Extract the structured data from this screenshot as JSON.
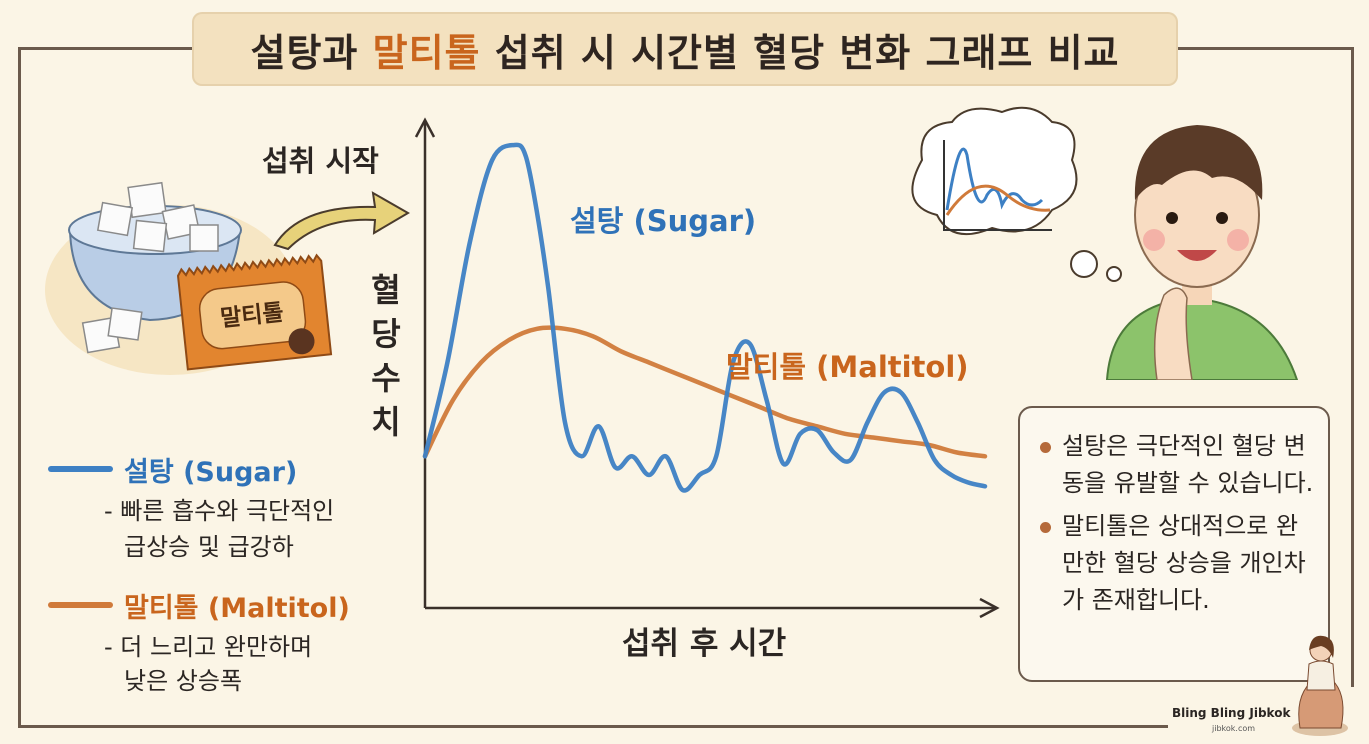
{
  "title": {
    "part1": "설탕과 ",
    "highlight": "말티톨",
    "part2": " 섭취 시 시간별 혈당 변화 그래프 비교"
  },
  "illustration": {
    "start_label": "섭취 시작",
    "wrapper_text": "말티톨"
  },
  "colors": {
    "sugar": "#3d80c4",
    "maltitol": "#d07a3a",
    "axis": "#3a302a",
    "title_highlight": "#c9651d"
  },
  "legend": {
    "sugar_name": "설탕 (Sugar)",
    "sugar_desc_1": "- 빠른 흡수와 극단적인",
    "sugar_desc_2": "급상승 및 급강하",
    "maltitol_name": "말티톨 (Maltitol)",
    "maltitol_desc_1": "- 더 느리고 완만하며",
    "maltitol_desc_2": "낮은 상승폭"
  },
  "notes": [
    "설탕은 극단적인 혈당 변동을 유발할 수 있습니다.",
    "말티톨은 상대적으로 완만한 혈당 상승을 개인차가 존재합니다."
  ],
  "brand": {
    "name": "Bling Bling Jibkok",
    "url": "jibkok.com"
  },
  "chart_data": {
    "type": "line",
    "title": "",
    "xlabel": "섭취 후 시간",
    "ylabel": "혈당수치",
    "ylabel_chars": [
      "혈",
      "당",
      "수",
      "치"
    ],
    "xlim": [
      0,
      100
    ],
    "ylim": [
      0,
      100
    ],
    "axis_ticks": false,
    "grid": false,
    "legend_position": "left",
    "series": [
      {
        "name": "설탕 (Sugar)",
        "color": "#3d80c4",
        "x": [
          0,
          4,
          8,
          12,
          16,
          18,
          20,
          22,
          25,
          28,
          31,
          34,
          37,
          40,
          43,
          46,
          49,
          52,
          55,
          58,
          61,
          64,
          67,
          70,
          73,
          76,
          79,
          82,
          85,
          88,
          91,
          94,
          97,
          100
        ],
        "y": [
          17,
          42,
          74,
          96,
          100,
          97,
          82,
          62,
          26,
          17,
          25,
          14,
          17,
          12,
          17,
          8,
          12,
          17,
          42,
          47,
          32,
          15,
          23,
          24,
          18,
          16,
          26,
          34,
          34,
          26,
          16,
          12,
          10,
          9
        ]
      },
      {
        "name": "말티톨 (Maltitol)",
        "color": "#d07a3a",
        "x": [
          0,
          5,
          10,
          15,
          20,
          25,
          30,
          35,
          40,
          45,
          50,
          55,
          60,
          65,
          70,
          75,
          80,
          85,
          90,
          95,
          100
        ],
        "y": [
          17,
          32,
          42,
          48,
          51,
          51,
          49,
          45,
          42,
          39,
          36,
          33,
          30,
          27,
          25,
          23,
          22,
          21,
          20,
          18,
          17
        ]
      }
    ]
  }
}
